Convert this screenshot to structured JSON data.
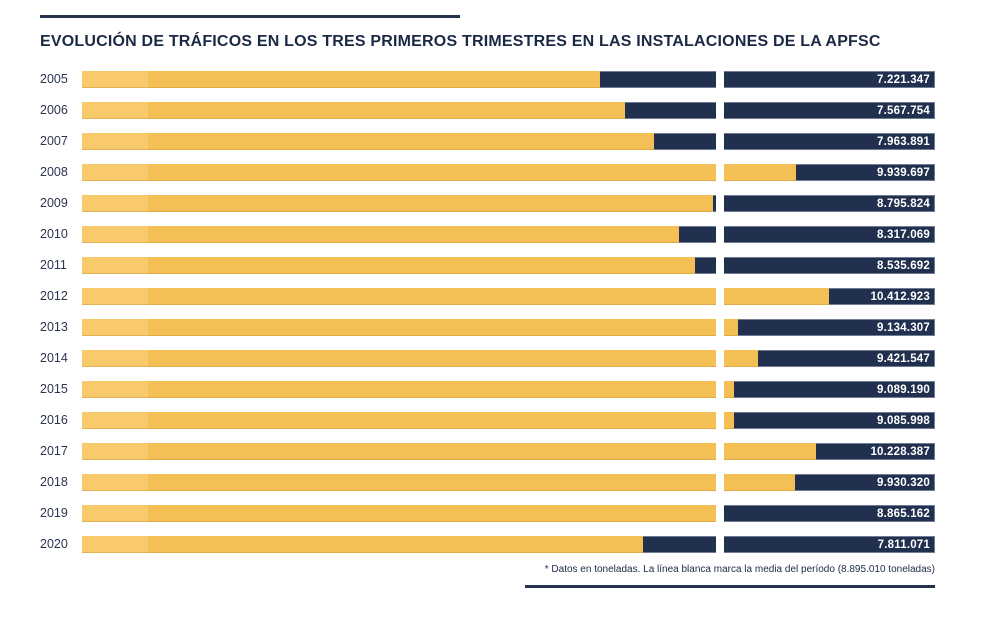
{
  "header": {
    "title": "EVOLUCIÓN DE TRÁFICOS EN LOS TRES PRIMEROS TRIMESTRES EN LAS INSTALACIONES DE LA APFSC"
  },
  "footer": {
    "note": "* Datos en toneladas. La línea blanca marca la media del período (8.895.010 toneladas)"
  },
  "chart_data": {
    "type": "bar",
    "orientation": "horizontal",
    "title": "EVOLUCIÓN DE TRÁFICOS EN LOS TRES PRIMEROS TRIMESTRES EN LAS INSTALACIONES DE LA APFSC",
    "unit": "toneladas",
    "categories": [
      "2005",
      "2006",
      "2007",
      "2008",
      "2009",
      "2010",
      "2011",
      "2012",
      "2013",
      "2014",
      "2015",
      "2016",
      "2017",
      "2018",
      "2019",
      "2020"
    ],
    "values": [
      7221347,
      7567754,
      7963891,
      9939697,
      8795824,
      8317069,
      8535692,
      10412923,
      9134307,
      9421547,
      9089190,
      9085998,
      10228387,
      9930320,
      8865162,
      7811071
    ],
    "value_labels": [
      "7.221.347",
      "7.567.754",
      "7.963.891",
      "9.939.697",
      "8.795.824",
      "8.317.069",
      "8.535.692",
      "10.412.923",
      "9.134.307",
      "9.421.547",
      "9.089.190",
      "9.085.998",
      "10.228.387",
      "9.930.320",
      "8.865.162",
      "7.811.071"
    ],
    "mean": 8895010,
    "mean_label": "8.895.010",
    "axis_max": 11883000,
    "xlim": [
      0,
      11883000
    ],
    "grid": "off",
    "legend": "off",
    "annotation": "La línea blanca marca la media del período",
    "colors": {
      "bar_fill": "#F4C055",
      "bar_remainder": "#20304E",
      "mean_line": "#FFFFFF",
      "value_text": "#FFFFFF",
      "title_text": "#1B2945",
      "rule": "#24324E"
    }
  }
}
